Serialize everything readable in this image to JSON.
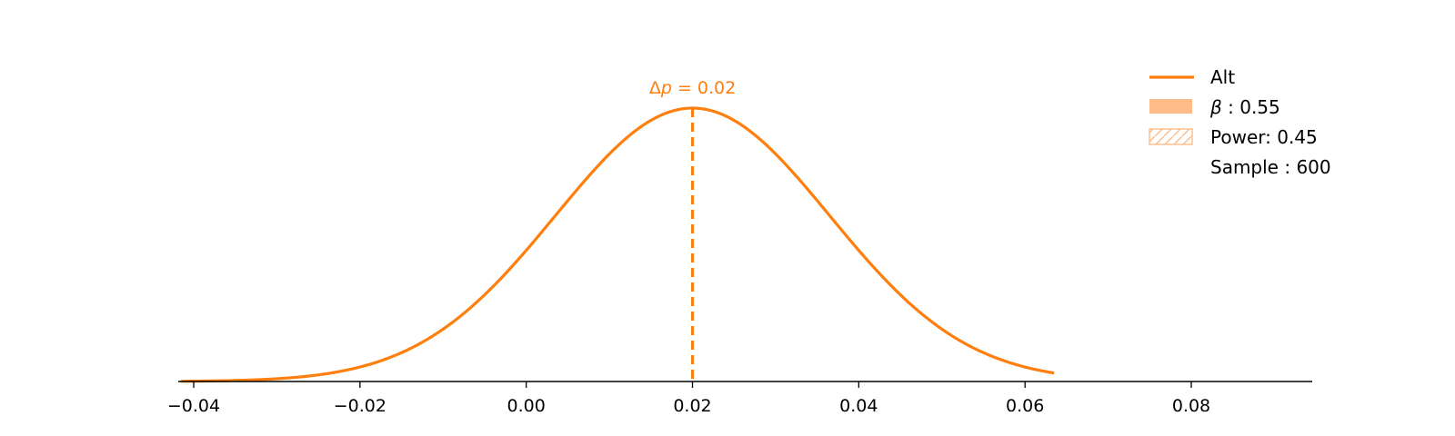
{
  "chart_data": {
    "type": "line",
    "title": "",
    "xlabel": "",
    "ylabel": "",
    "xlim": [
      -0.042,
      0.094
    ],
    "xticks": [
      -0.04,
      -0.02,
      0.0,
      0.02,
      0.04,
      0.06,
      0.08
    ],
    "xtick_labels": [
      "−0.04",
      "−0.02",
      "0.00",
      "0.02",
      "0.04",
      "0.06",
      "0.08"
    ],
    "grid": false,
    "legend_position": "top-right",
    "colors": {
      "line": "#ff7f0e",
      "fill": "#ffbb88",
      "axis": "#000000",
      "text": "#000000"
    },
    "series": [
      {
        "name": "Alt",
        "distribution": "normal",
        "mean": 0.02,
        "std": 0.0165,
        "x_range": [
          -0.0415,
          0.0635
        ]
      }
    ],
    "annotation": {
      "prefix": "Δ",
      "symbol": "p",
      "text": " = 0.02",
      "x": 0.02
    },
    "legend": {
      "items": [
        {
          "symbol": "line",
          "label": "Alt"
        },
        {
          "symbol": "filled",
          "label_symbol": "β",
          "label": " :  0.55"
        },
        {
          "symbol": "hatched",
          "label": "Power:  0.45"
        },
        {
          "symbol": "none",
          "label": "Sample : 600"
        }
      ]
    }
  }
}
